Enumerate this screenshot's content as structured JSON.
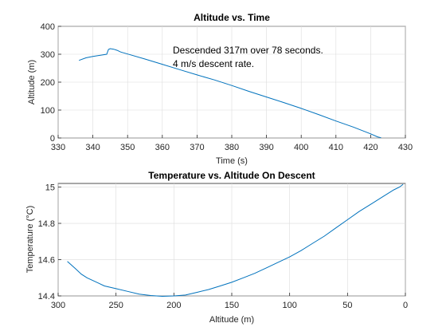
{
  "chart_data": [
    {
      "type": "line",
      "title": "Altitude vs. Time",
      "xlabel": "Time (s)",
      "ylabel": "Altitude (m)",
      "xlim": [
        330,
        430
      ],
      "ylim": [
        0,
        400
      ],
      "xticks": [
        330,
        340,
        350,
        360,
        370,
        380,
        390,
        400,
        410,
        420,
        430
      ],
      "yticks": [
        0,
        100,
        200,
        300,
        400
      ],
      "grid": true,
      "annotations": [
        "Descended 317m over 78 seconds.",
        "4 m/s descent rate."
      ],
      "series": [
        {
          "x": [
            336,
            338,
            340,
            342,
            344,
            344.5,
            345,
            346,
            347,
            348,
            350,
            355,
            360,
            365,
            370,
            375,
            380,
            385,
            390,
            395,
            400,
            405,
            410,
            415,
            420,
            422,
            423
          ],
          "y": [
            278,
            287,
            292,
            296,
            300,
            317,
            320,
            318,
            314,
            308,
            301,
            283,
            264,
            245,
            226,
            208,
            188,
            167,
            147,
            127,
            106,
            84,
            61,
            39,
            15,
            4,
            1
          ]
        }
      ]
    },
    {
      "type": "line",
      "title": "Temperature vs. Altitude On Descent",
      "xlabel": "Altitude (m)",
      "ylabel": "Temperature (°C)",
      "xlim": [
        300,
        0
      ],
      "ylim": [
        14.4,
        15.02
      ],
      "xticks": [
        300,
        250,
        200,
        150,
        100,
        50,
        0
      ],
      "yticks": [
        14.4,
        14.6,
        14.8,
        15
      ],
      "ytick_labels": [
        "14.4",
        "14.6",
        "14.8",
        "15"
      ],
      "grid": true,
      "series": [
        {
          "x": [
            292,
            285,
            280,
            275,
            270,
            265,
            260,
            250,
            240,
            230,
            220,
            210,
            200,
            190,
            180,
            170,
            160,
            150,
            140,
            130,
            120,
            110,
            100,
            90,
            80,
            70,
            60,
            50,
            40,
            30,
            20,
            10,
            5,
            2
          ],
          "y": [
            14.59,
            14.55,
            14.52,
            14.5,
            14.485,
            14.47,
            14.455,
            14.44,
            14.425,
            14.41,
            14.402,
            14.398,
            14.4,
            14.405,
            14.42,
            14.435,
            14.455,
            14.475,
            14.5,
            14.525,
            14.555,
            14.585,
            14.615,
            14.65,
            14.69,
            14.73,
            14.775,
            14.82,
            14.865,
            14.905,
            14.945,
            14.985,
            15.0,
            15.015
          ]
        }
      ]
    }
  ]
}
